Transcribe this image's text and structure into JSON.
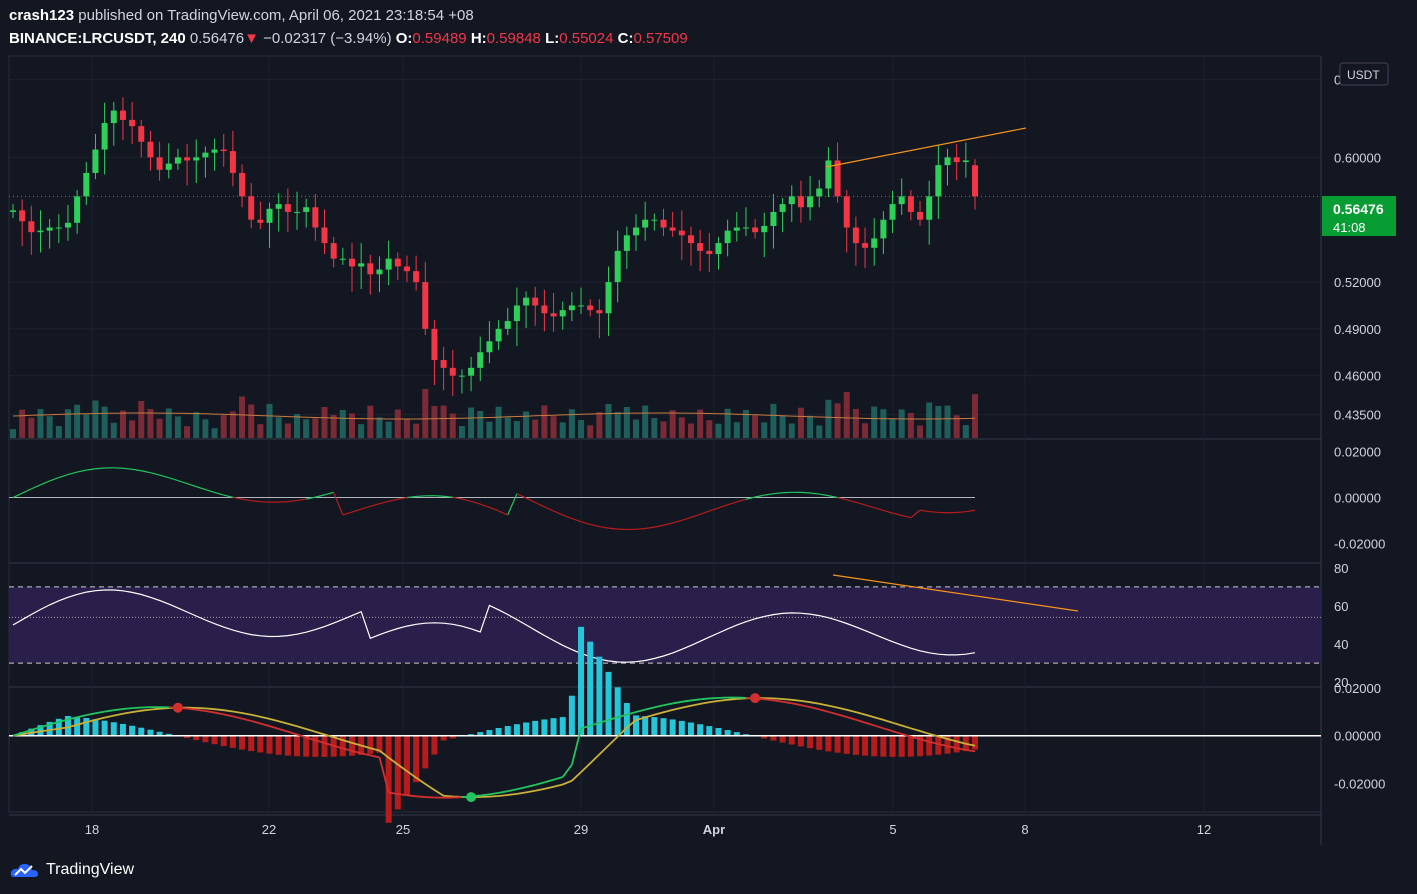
{
  "header": {
    "author": "crash123",
    "published_text": "published on TradingView.com, April 06, 2021 23:18:54 +08",
    "symbol": "BINANCE:LRCUSDT, 240",
    "last": "0.56476",
    "change": "−0.02317 (−3.94%)",
    "o_label": "O:",
    "o": "0.59489",
    "h_label": "H:",
    "h": "0.59848",
    "l_label": "L:",
    "l": "0.55024",
    "c_label": "C:",
    "c": "0.57509"
  },
  "currency_badge": "USDT",
  "price_tag": {
    "price": "0.56476",
    "countdown": "41:08"
  },
  "footer": {
    "logo_text": "TradingView"
  },
  "colors": {
    "up": "#26a69a",
    "up_candle": "#2fd05a",
    "down": "#f23645",
    "bg": "#131722",
    "grid": "#2a2e39",
    "trend": "#f7931a",
    "rsi_fill": "#2a1f4a"
  },
  "chart_data": [
    {
      "type": "candlestick",
      "title": "BINANCE:LRCUSDT, 240",
      "x_ticks": [
        "18",
        "22",
        "25",
        "29",
        "Apr",
        "5",
        "8",
        "12"
      ],
      "y_ticks": [
        "0.65000",
        "0.60000",
        "0.56476",
        "0.52000",
        "0.49000",
        "0.46000",
        "0.43500"
      ],
      "y_range": [
        0.42,
        0.665
      ],
      "closes": [
        0.566,
        0.559,
        0.552,
        0.553,
        0.555,
        0.555,
        0.558,
        0.575,
        0.59,
        0.605,
        0.622,
        0.63,
        0.624,
        0.62,
        0.61,
        0.6,
        0.592,
        0.596,
        0.6,
        0.598,
        0.6,
        0.603,
        0.605,
        0.604,
        0.59,
        0.575,
        0.56,
        0.558,
        0.567,
        0.57,
        0.565,
        0.565,
        0.568,
        0.555,
        0.545,
        0.535,
        0.535,
        0.53,
        0.532,
        0.525,
        0.528,
        0.535,
        0.53,
        0.527,
        0.52,
        0.49,
        0.47,
        0.465,
        0.46,
        0.46,
        0.465,
        0.475,
        0.482,
        0.49,
        0.495,
        0.505,
        0.51,
        0.505,
        0.5,
        0.498,
        0.502,
        0.505,
        0.505,
        0.502,
        0.5,
        0.52,
        0.54,
        0.55,
        0.555,
        0.56,
        0.56,
        0.555,
        0.553,
        0.55,
        0.545,
        0.54,
        0.538,
        0.545,
        0.553,
        0.555,
        0.555,
        0.552,
        0.556,
        0.565,
        0.57,
        0.575,
        0.568,
        0.575,
        0.58,
        0.598,
        0.575,
        0.555,
        0.545,
        0.542,
        0.548,
        0.56,
        0.57,
        0.575,
        0.565,
        0.56,
        0.575,
        0.595,
        0.6,
        0.597,
        0.598,
        0.575
      ],
      "volumes_scale": "relative"
    },
    {
      "type": "line",
      "name": "oscillator",
      "y_ticks": [
        "0.02000",
        "0.00000",
        "-0.02000"
      ],
      "y_range": [
        -0.028,
        0.025
      ]
    },
    {
      "type": "line",
      "name": "rsi",
      "y_ticks": [
        "80",
        "60",
        "40",
        "20"
      ],
      "y_range": [
        18,
        82
      ],
      "bands": [
        30,
        70
      ],
      "middle": 54
    },
    {
      "type": "bar",
      "name": "macd",
      "y_ticks": [
        "0.02000",
        "0.00000",
        "-0.02000"
      ],
      "y_range": [
        -0.032,
        0.02
      ]
    }
  ]
}
